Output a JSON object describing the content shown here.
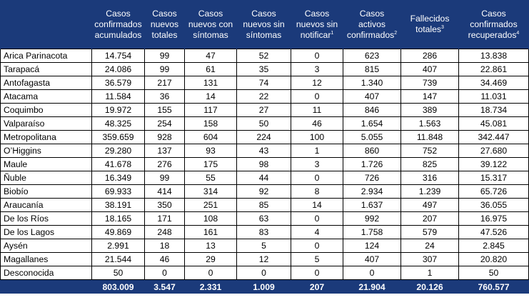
{
  "colors": {
    "header_bg": "#1b3a7a",
    "header_text": "#ffffff",
    "border": "#000000"
  },
  "headers": [
    {
      "label": "",
      "sup": ""
    },
    {
      "label": "Casos\nconfirmados\nacumulados",
      "sup": ""
    },
    {
      "label": "Casos\nnuevos\ntotales",
      "sup": ""
    },
    {
      "label": "Casos\nnuevos con\nsíntomas",
      "sup": ""
    },
    {
      "label": "Casos\nnuevos sin\nsíntomas",
      "sup": ""
    },
    {
      "label": "Casos\nnuevos sin\nnotificar",
      "sup": "1"
    },
    {
      "label": "Casos\nactivos\nconfirmados",
      "sup": "2"
    },
    {
      "label": "Fallecidos\ntotales",
      "sup": "3"
    },
    {
      "label": "Casos\nconfirmados\nrecuperados",
      "sup": "4"
    }
  ],
  "rows": [
    [
      "Arica Parinacota",
      "14.754",
      "99",
      "47",
      "52",
      "0",
      "623",
      "286",
      "13.838"
    ],
    [
      "Tarapacá",
      "24.086",
      "99",
      "61",
      "35",
      "3",
      "815",
      "407",
      "22.861"
    ],
    [
      "Antofagasta",
      "36.579",
      "217",
      "131",
      "74",
      "12",
      "1.340",
      "739",
      "34.469"
    ],
    [
      "Atacama",
      "11.584",
      "36",
      "14",
      "22",
      "0",
      "407",
      "147",
      "11.031"
    ],
    [
      "Coquimbo",
      "19.972",
      "155",
      "117",
      "27",
      "11",
      "846",
      "389",
      "18.734"
    ],
    [
      "Valparaíso",
      "48.325",
      "254",
      "158",
      "50",
      "46",
      "1.654",
      "1.563",
      "45.081"
    ],
    [
      "Metropolitana",
      "359.659",
      "928",
      "604",
      "224",
      "100",
      "5.055",
      "11.848",
      "342.447"
    ],
    [
      "O’Higgins",
      "29.280",
      "137",
      "93",
      "43",
      "1",
      "860",
      "752",
      "27.680"
    ],
    [
      "Maule",
      "41.678",
      "276",
      "175",
      "98",
      "3",
      "1.726",
      "825",
      "39.122"
    ],
    [
      "Ñuble",
      "16.349",
      "99",
      "55",
      "44",
      "0",
      "726",
      "316",
      "15.317"
    ],
    [
      "Biobío",
      "69.933",
      "414",
      "314",
      "92",
      "8",
      "2.934",
      "1.239",
      "65.726"
    ],
    [
      "Araucanía",
      "38.191",
      "350",
      "251",
      "85",
      "14",
      "1.637",
      "497",
      "36.055"
    ],
    [
      "De los Ríos",
      "18.165",
      "171",
      "108",
      "63",
      "0",
      "992",
      "207",
      "16.975"
    ],
    [
      "De los Lagos",
      "49.869",
      "248",
      "161",
      "83",
      "4",
      "1.758",
      "579",
      "47.526"
    ],
    [
      "Aysén",
      "2.991",
      "18",
      "13",
      "5",
      "0",
      "124",
      "24",
      "2.845"
    ],
    [
      "Magallanes",
      "21.544",
      "46",
      "29",
      "12",
      "5",
      "407",
      "307",
      "20.820"
    ],
    [
      "Desconocida",
      "50",
      "0",
      "0",
      "0",
      "0",
      "0",
      "1",
      "50"
    ]
  ],
  "totals": [
    "",
    "803.009",
    "3.547",
    "2.331",
    "1.009",
    "207",
    "21.904",
    "20.126",
    "760.577"
  ]
}
